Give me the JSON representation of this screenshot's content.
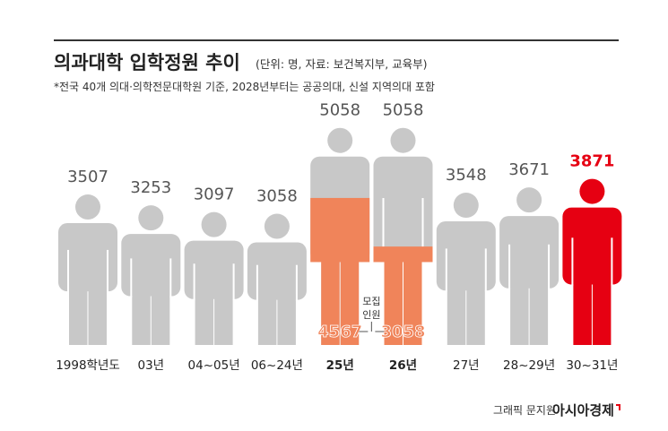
{
  "chart_data": {
    "type": "pictogram",
    "title": "의과대학 입학정원 추이",
    "subtitle": "(단위: 명, 자료: 보건복지부, 교육부)",
    "note": "*전국 40개 의대·의학전문대학원 기준, 2028년부터는 공공의대, 신설 지역의대 포함",
    "categories": [
      "1998학년도",
      "03년",
      "04~05년",
      "06~24년",
      "25년",
      "26년",
      "27년",
      "28~29년",
      "30~31년"
    ],
    "values": [
      3507,
      3253,
      3097,
      3058,
      5058,
      5058,
      3548,
      3671,
      3871
    ],
    "colors": [
      "#c8c8c8",
      "#c8c8c8",
      "#c8c8c8",
      "#c8c8c8",
      "#c8c8c8",
      "#c8c8c8",
      "#c8c8c8",
      "#c8c8c8",
      "#e60012"
    ],
    "recruitment": {
      "label": [
        "모집",
        "인원"
      ],
      "color": "#f0845a",
      "values": [
        null,
        null,
        null,
        null,
        4567,
        3058,
        null,
        null,
        null
      ]
    }
  },
  "footer": {
    "credit": "그래픽 문지원",
    "brand": "아시아경제"
  }
}
